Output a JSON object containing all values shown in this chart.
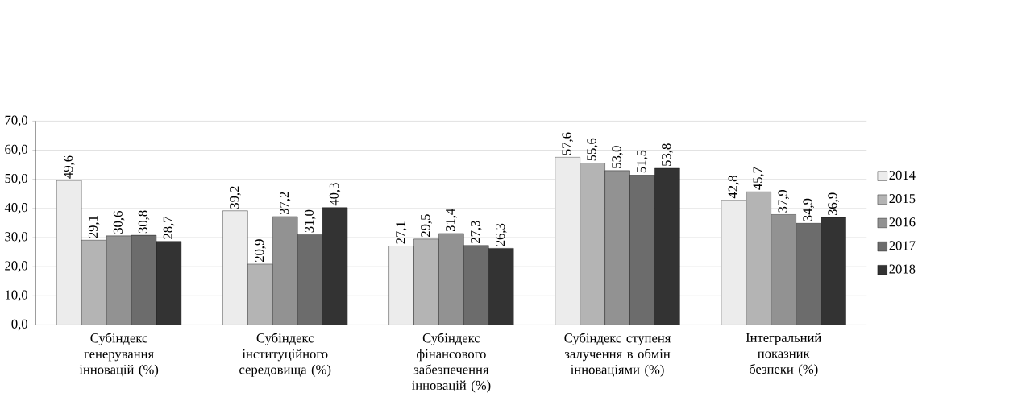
{
  "chart_data": {
    "type": "bar",
    "categories": [
      "Субіндекс генерування інновацій (%)",
      "Субіндекс інституційного середовища (%)",
      "Субіндекс фінансового забезпечення інновацій (%)",
      "Субіндекс ступеня залучення в обмін інноваціями (%)",
      "Інтегральний показник безпеки (%)"
    ],
    "series": [
      {
        "name": "2014",
        "color": "#ececec",
        "values": [
          49.6,
          39.2,
          27.1,
          57.6,
          42.8
        ],
        "value_labels": [
          "49,6",
          "39,2",
          "27,1",
          "57,6",
          "42,8"
        ]
      },
      {
        "name": "2015",
        "color": "#b4b4b4",
        "values": [
          29.1,
          20.9,
          29.5,
          55.6,
          45.7
        ],
        "value_labels": [
          "29,1",
          "20,9",
          "29,5",
          "55,6",
          "45,7"
        ]
      },
      {
        "name": "2016",
        "color": "#929292",
        "values": [
          30.6,
          37.2,
          31.4,
          53.0,
          37.9
        ],
        "value_labels": [
          "30,6",
          "37,2",
          "31,4",
          "53,0",
          "37,9"
        ]
      },
      {
        "name": "2017",
        "color": "#6c6c6c",
        "values": [
          30.8,
          31.0,
          27.3,
          51.5,
          34.9
        ],
        "value_labels": [
          "30,8",
          "31,0",
          "27,3",
          "51,5",
          "34,9"
        ]
      },
      {
        "name": "2018",
        "color": "#333333",
        "values": [
          28.7,
          40.3,
          26.3,
          53.8,
          36.9
        ],
        "value_labels": [
          "28,7",
          "40,3",
          "26,3",
          "53,8",
          "36,9"
        ]
      }
    ],
    "ylim": [
      0,
      70
    ],
    "yticks": [
      {
        "value": 0,
        "label": "0,0"
      },
      {
        "value": 10,
        "label": "10,0"
      },
      {
        "value": 20,
        "label": "20,0"
      },
      {
        "value": 30,
        "label": "30,0"
      },
      {
        "value": 40,
        "label": "40,0"
      },
      {
        "value": 50,
        "label": "50,0"
      },
      {
        "value": 60,
        "label": "60,0"
      },
      {
        "value": 70,
        "label": "70,0"
      }
    ],
    "grid": "y",
    "legend": "right"
  }
}
